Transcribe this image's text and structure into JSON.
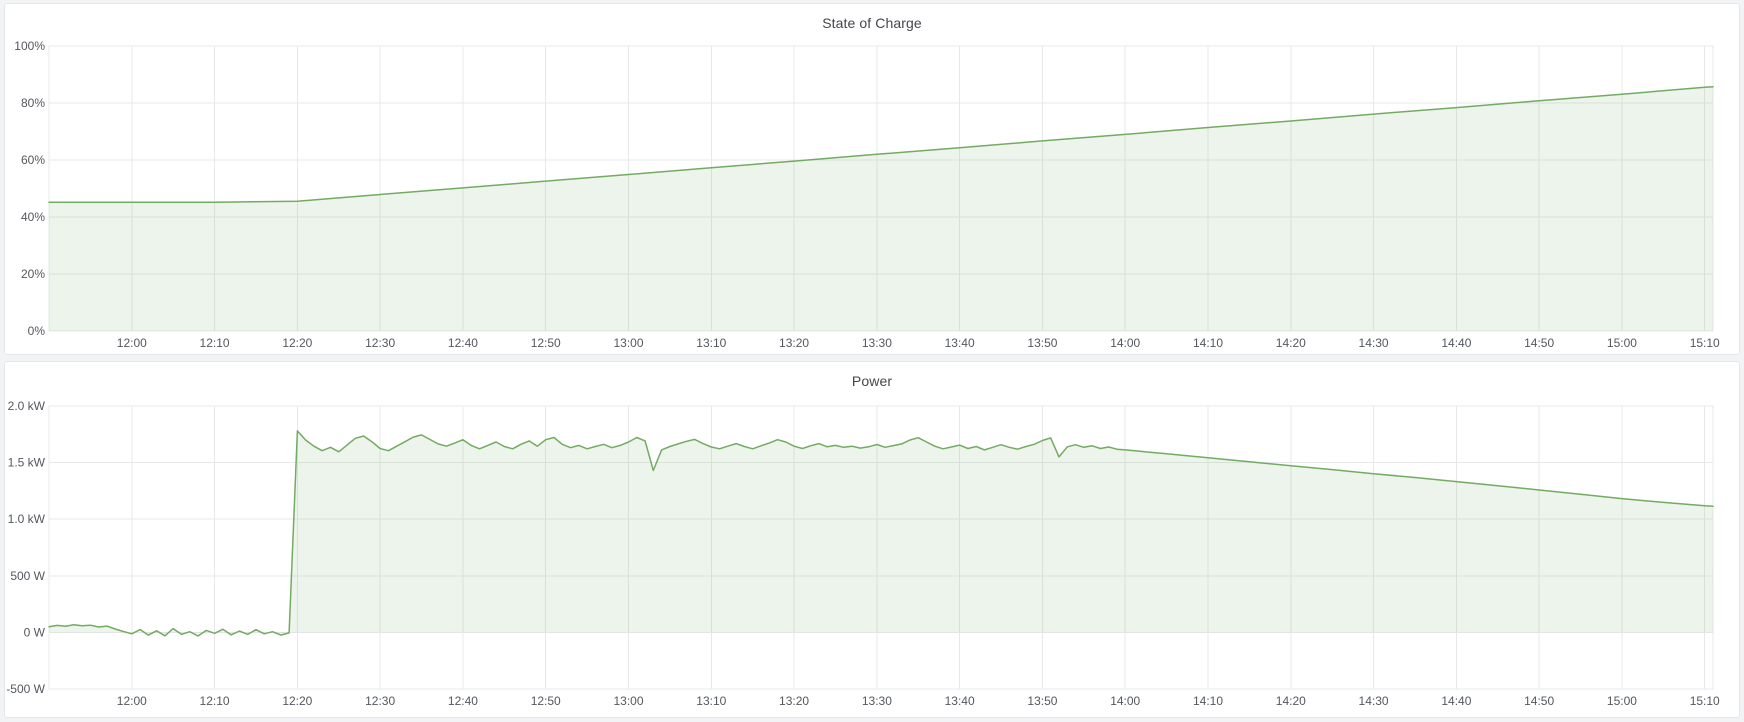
{
  "page": {
    "background": "#f2f3f5",
    "panel_background": "#ffffff",
    "accent_green": "#73ab63"
  },
  "chart_data": [
    {
      "type": "area",
      "title": "State of Charge",
      "ylabel": "",
      "xlabel": "",
      "unit": "%",
      "ylim": [
        0,
        100
      ],
      "x_range": [
        "11:50",
        "15:11"
      ],
      "grid": true,
      "legend": "none",
      "x_ticks": [
        "12:00",
        "12:10",
        "12:20",
        "12:30",
        "12:40",
        "12:50",
        "13:00",
        "13:10",
        "13:20",
        "13:30",
        "13:40",
        "13:50",
        "14:00",
        "14:10",
        "14:20",
        "14:30",
        "14:40",
        "14:50",
        "15:00",
        "15:10"
      ],
      "y_ticks": [
        {
          "label": "0%",
          "value": 0
        },
        {
          "label": "20%",
          "value": 20
        },
        {
          "label": "40%",
          "value": 40
        },
        {
          "label": "60%",
          "value": 60
        },
        {
          "label": "80%",
          "value": 80
        },
        {
          "label": "100%",
          "value": 100
        }
      ],
      "series": [
        {
          "name": "State of Charge",
          "color": "#73ab63",
          "fill_opacity": 0.13,
          "baseline": 0,
          "segments": [
            {
              "start": "11:50",
              "step_min": 10,
              "values": [
                45.2,
                45.2,
                45.2,
                45.5,
                47.9,
                50.2,
                52.6,
                54.9,
                57.3,
                59.6,
                62.0,
                64.3,
                66.7,
                69.0,
                71.4,
                73.7,
                76.1,
                78.4,
                80.8,
                83.1,
                85.5
              ]
            },
            {
              "start": "15:11",
              "step_min": 1,
              "values": [
                85.7
              ]
            }
          ]
        }
      ]
    },
    {
      "type": "area",
      "title": "Power",
      "ylabel": "",
      "xlabel": "",
      "unit": "W",
      "ylim": [
        -500,
        2000
      ],
      "x_range": [
        "11:50",
        "15:11"
      ],
      "grid": true,
      "legend": "none",
      "x_ticks": [
        "12:00",
        "12:10",
        "12:20",
        "12:30",
        "12:40",
        "12:50",
        "13:00",
        "13:10",
        "13:20",
        "13:30",
        "13:40",
        "13:50",
        "14:00",
        "14:10",
        "14:20",
        "14:30",
        "14:40",
        "14:50",
        "15:00",
        "15:10"
      ],
      "y_ticks": [
        {
          "label": "-500 W",
          "value": -500
        },
        {
          "label": "0 W",
          "value": 0
        },
        {
          "label": "500 W",
          "value": 500
        },
        {
          "label": "1.0 kW",
          "value": 1000
        },
        {
          "label": "1.5 kW",
          "value": 1500
        },
        {
          "label": "2.0 kW",
          "value": 2000
        }
      ],
      "series": [
        {
          "name": "Power",
          "color": "#73ab63",
          "fill_opacity": 0.13,
          "baseline": 0,
          "segments": [
            {
              "start": "11:50",
              "step_min": 1,
              "values": [
                50,
                62,
                55,
                68,
                58,
                64,
                48,
                56,
                30,
                8,
                -12,
                26,
                -24,
                14,
                -30,
                34,
                -18,
                6,
                -32,
                18,
                -8,
                28,
                -22,
                12,
                -18,
                24,
                -12,
                6,
                -24,
                -4
              ]
            },
            {
              "start": "12:20",
              "step_min": 1,
              "values": [
                1780,
                1700,
                1645,
                1605,
                1635,
                1595,
                1655,
                1715,
                1735,
                1685,
                1625,
                1605,
                1645,
                1685,
                1725,
                1745,
                1705,
                1665,
                1645,
                1672,
                1702,
                1652,
                1622,
                1652,
                1682,
                1642,
                1622,
                1662,
                1692,
                1645,
                1702,
                1722,
                1662,
                1632,
                1652,
                1622,
                1642,
                1662,
                1632,
                1652,
                1682,
                1722,
                1692,
                1430,
                1612,
                1642,
                1665,
                1688,
                1705,
                1668,
                1638,
                1622,
                1645,
                1668,
                1642,
                1622,
                1648,
                1672,
                1702,
                1682,
                1645,
                1625,
                1648,
                1668,
                1640,
                1652,
                1635,
                1645,
                1628,
                1640,
                1660,
                1635,
                1650,
                1665,
                1700,
                1720,
                1682,
                1645,
                1622,
                1638,
                1655,
                1625,
                1642,
                1612,
                1635,
                1658,
                1635,
                1618,
                1642,
                1662,
                1695,
                1718,
                1550,
                1640,
                1658,
                1635,
                1648,
                1625,
                1638,
                1618,
                1612
              ]
            },
            {
              "start": "14:05",
              "step_min": 5,
              "values": [
                1578,
                1542,
                1508,
                1472,
                1438,
                1402,
                1368,
                1332,
                1296,
                1258,
                1220,
                1182,
                1148,
                1118
              ]
            },
            {
              "start": "15:11",
              "step_min": 1,
              "values": [
                1114
              ]
            }
          ]
        }
      ]
    }
  ]
}
